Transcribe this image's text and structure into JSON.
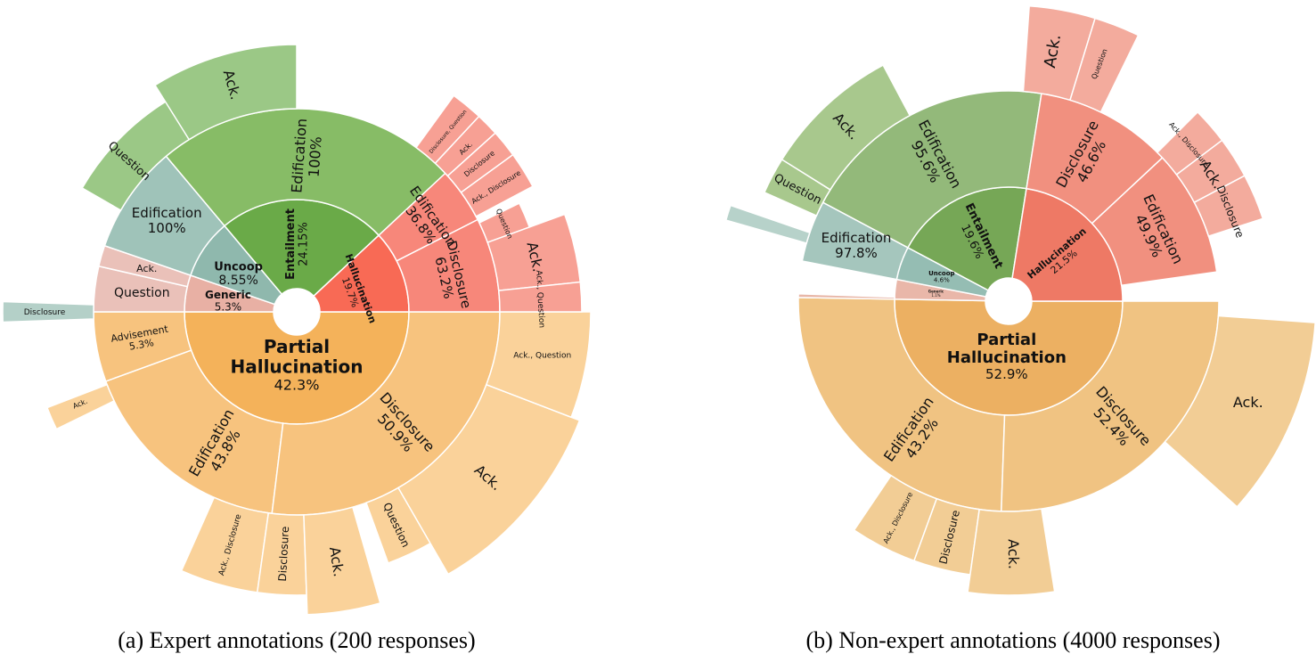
{
  "chart_data": [
    {
      "type": "sunburst",
      "caption": "(a)  Expert annotations (200 responses)",
      "rings": {
        "inner": [
          {
            "label": "Partial Hallucination",
            "value": "42.3%",
            "share": 42.3,
            "color": "#f4b25a"
          },
          {
            "label": "Generic",
            "value": "5.3%",
            "share": 5.3,
            "color": "#e8b0a4"
          },
          {
            "label": "Uncoop",
            "value": "8.55%",
            "share": 8.55,
            "color": "#8fb8ad"
          },
          {
            "label": "Entailment",
            "value": "24.15%",
            "share": 24.15,
            "color": "#6aaa48"
          },
          {
            "label": "Hallucination",
            "value": "19.7%",
            "share": 19.7,
            "color": "#f86a55"
          }
        ],
        "middle": [
          {
            "label": "Edification",
            "value": "43.8%",
            "color": "#f7c37e"
          },
          {
            "label": "Disclosure",
            "value": "50.9%",
            "color": "#f7c37e"
          },
          {
            "label": "Advisement",
            "value": "5.3%",
            "color": "#f7c37e"
          },
          {
            "label": "Question",
            "value": "",
            "color": "#eac1b9"
          },
          {
            "label": "Ack.",
            "value": "",
            "color": "#eac1b9"
          },
          {
            "label": "Edification",
            "value": "100%",
            "color": "#9fc3b9"
          },
          {
            "label": "Edification",
            "value": "100%",
            "color": "#87bc66"
          },
          {
            "label": "Edification",
            "value": "36.8%",
            "color": "#f7877a"
          },
          {
            "label": "Disclosure",
            "value": "63.2%",
            "color": "#f7877a"
          }
        ],
        "outer": [
          {
            "label": "Ack., Disclosure",
            "parent": "Edification 43.8%"
          },
          {
            "label": "Disclosure",
            "parent": "Edification 43.8%"
          },
          {
            "label": "Ack.",
            "parent": "Edification 43.8%"
          },
          {
            "label": "Question",
            "parent": "Disclosure 50.9%"
          },
          {
            "label": "Ack.",
            "parent": "Disclosure 50.9%"
          },
          {
            "label": "Ack., Question",
            "parent": "Disclosure 50.9%"
          },
          {
            "label": "Ack.",
            "parent": "Advisement 5.3%"
          },
          {
            "label": "Disclosure",
            "parent": "Uncoop Edification"
          },
          {
            "label": "Question",
            "parent": "Entailment Edification"
          },
          {
            "label": "Ack.",
            "parent": "Entailment Edification"
          },
          {
            "label": "Disclosure, Question",
            "parent": "Hallucination Edification"
          },
          {
            "label": "Ack.",
            "parent": "Hallucination Edification"
          },
          {
            "label": "Disclosure",
            "parent": "Hallucination Edification"
          },
          {
            "label": "Ack., Disclosure",
            "parent": "Hallucination Edification"
          },
          {
            "label": "Question",
            "parent": "Hallucination Disclosure"
          },
          {
            "label": "Ack.",
            "parent": "Hallucination Disclosure"
          },
          {
            "label": "Ack., Question",
            "parent": "Hallucination Disclosure"
          }
        ]
      }
    },
    {
      "type": "sunburst",
      "caption": "(b)  Non-expert annotations (4000 responses)",
      "rings": {
        "inner": [
          {
            "label": "Partial Hallucination",
            "value": "52.9%",
            "share": 52.9,
            "color": "#ecb062"
          },
          {
            "label": "Generic",
            "value": "1.1%",
            "share": 1.1,
            "color": "#e9b7a9"
          },
          {
            "label": "Uncoop",
            "value": "4.6%",
            "share": 4.6,
            "color": "#95bdb3"
          },
          {
            "label": "Entailment",
            "value": "19.6%",
            "share": 19.6,
            "color": "#76a756"
          },
          {
            "label": "Hallucination",
            "value": "21.5%",
            "share": 21.5,
            "color": "#ee7965"
          }
        ],
        "middle": [
          {
            "label": "Edification",
            "value": "43.2%",
            "color": "#f0c382"
          },
          {
            "label": "Disclosure",
            "value": "52.4%",
            "color": "#f0c382"
          },
          {
            "label": "Edification",
            "value": "97.8%",
            "color": "#a5c6bd"
          },
          {
            "label": "Edification",
            "value": "95.6%",
            "color": "#93b97a"
          },
          {
            "label": "Disclosure",
            "value": "46.6%",
            "color": "#f1907f"
          },
          {
            "label": "Edification",
            "value": "49.9%",
            "color": "#f1907f"
          }
        ],
        "outer": [
          {
            "label": "Ack., Disclosure",
            "parent": "Edification 43.2%"
          },
          {
            "label": "Disclosure",
            "parent": "Edification 43.2%"
          },
          {
            "label": "Ack.",
            "parent": "Edification 43.2%"
          },
          {
            "label": "Ack.",
            "parent": "Disclosure 52.4%"
          },
          {
            "label": "Question",
            "parent": "Entailment Edification"
          },
          {
            "label": "Ack.",
            "parent": "Entailment Edification"
          },
          {
            "label": "Ack.",
            "parent": "Hallucination Disclosure"
          },
          {
            "label": "Question",
            "parent": "Hallucination Disclosure"
          },
          {
            "label": "Ack., Disclosure",
            "parent": "Hallucination Edification"
          },
          {
            "label": "Ack.",
            "parent": "Hallucination Edification"
          },
          {
            "label": "Disclosure",
            "parent": "Hallucination Edification"
          }
        ]
      }
    }
  ]
}
